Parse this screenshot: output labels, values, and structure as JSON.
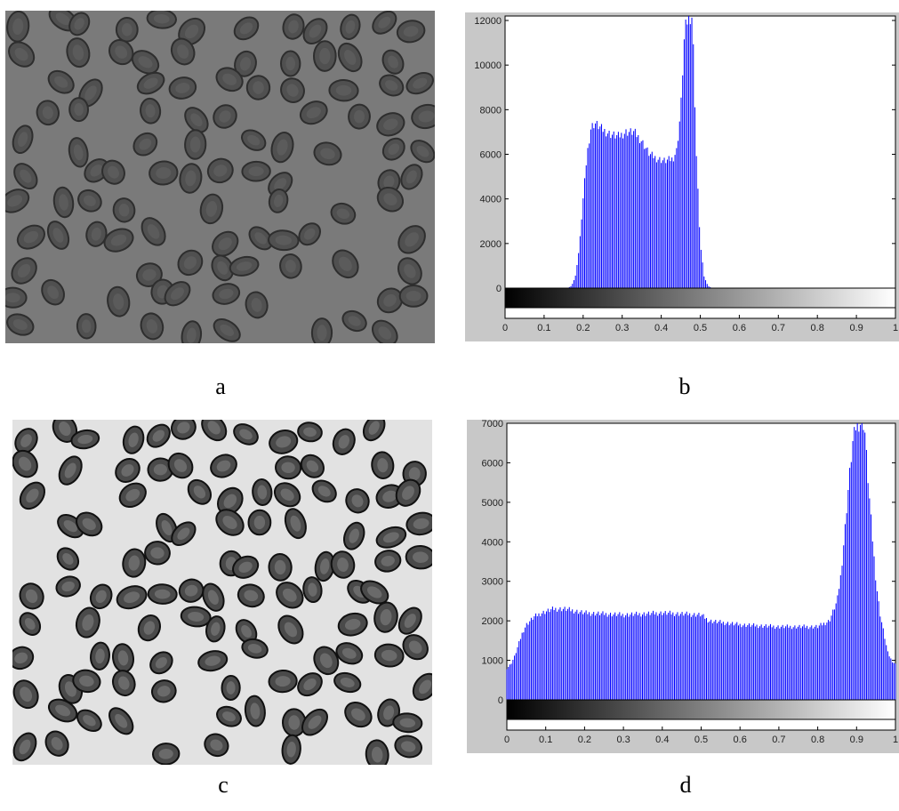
{
  "figure": {
    "captions": {
      "a": "a",
      "b": "b",
      "c": "c",
      "d": "d"
    },
    "image_a": {
      "description": "Grayscale micrograph of red blood cells (low contrast)",
      "background": "#7a7a7a",
      "cell_color": "#3e3e3e"
    },
    "image_c": {
      "description": "Contrast-enhanced micrograph of red blood cells",
      "background": "#e2e2e2",
      "cell_color": "#1e1e1e"
    }
  },
  "chart_data": [
    {
      "type": "bar",
      "id": "b",
      "title": "",
      "xlabel": "",
      "ylabel": "",
      "xlim": [
        0,
        1
      ],
      "ylim": [
        0,
        12200
      ],
      "y_ticks": [
        0,
        2000,
        4000,
        6000,
        8000,
        10000,
        12000
      ],
      "x_ticks": [
        0,
        0.1,
        0.2,
        0.3,
        0.4,
        0.5,
        0.6,
        0.7,
        0.8,
        0.9,
        1
      ],
      "x_tick_labels": [
        "0",
        "0.1",
        "0.2",
        "0.3",
        "0.4",
        "0.5",
        "0.6",
        "0.7",
        "0.8",
        "0.9",
        "1"
      ],
      "bar_color": "#0000ff",
      "colorbar": "grayscale",
      "profile": [
        [
          0.16,
          0
        ],
        [
          0.17,
          100
        ],
        [
          0.18,
          500
        ],
        [
          0.19,
          1800
        ],
        [
          0.2,
          4000
        ],
        [
          0.21,
          6000
        ],
        [
          0.22,
          7200
        ],
        [
          0.23,
          7400
        ],
        [
          0.25,
          7100
        ],
        [
          0.27,
          6900
        ],
        [
          0.29,
          6800
        ],
        [
          0.31,
          7000
        ],
        [
          0.33,
          7000
        ],
        [
          0.35,
          6600
        ],
        [
          0.37,
          6000
        ],
        [
          0.39,
          5800
        ],
        [
          0.41,
          5700
        ],
        [
          0.43,
          5800
        ],
        [
          0.44,
          6200
        ],
        [
          0.45,
          8000
        ],
        [
          0.46,
          11500
        ],
        [
          0.47,
          12200
        ],
        [
          0.48,
          12200
        ],
        [
          0.49,
          6000
        ],
        [
          0.5,
          2000
        ],
        [
          0.51,
          500
        ],
        [
          0.52,
          100
        ],
        [
          0.53,
          0
        ]
      ]
    },
    {
      "type": "bar",
      "id": "d",
      "title": "",
      "xlabel": "",
      "ylabel": "",
      "xlim": [
        0,
        1
      ],
      "ylim": [
        0,
        7000
      ],
      "y_ticks": [
        0,
        1000,
        2000,
        3000,
        4000,
        5000,
        6000,
        7000
      ],
      "x_ticks": [
        0,
        0.1,
        0.2,
        0.3,
        0.4,
        0.5,
        0.6,
        0.7,
        0.8,
        0.9,
        1
      ],
      "x_tick_labels": [
        "0",
        "0.1",
        "0.2",
        "0.3",
        "0.4",
        "0.5",
        "0.6",
        "0.7",
        "0.8",
        "0.9",
        "1"
      ],
      "bar_color": "#0000ff",
      "colorbar": "grayscale",
      "profile": [
        [
          0.0,
          800
        ],
        [
          0.01,
          900
        ],
        [
          0.02,
          1100
        ],
        [
          0.03,
          1400
        ],
        [
          0.04,
          1700
        ],
        [
          0.05,
          1900
        ],
        [
          0.07,
          2100
        ],
        [
          0.09,
          2200
        ],
        [
          0.12,
          2300
        ],
        [
          0.15,
          2300
        ],
        [
          0.2,
          2200
        ],
        [
          0.3,
          2150
        ],
        [
          0.4,
          2200
        ],
        [
          0.5,
          2150
        ],
        [
          0.52,
          2000
        ],
        [
          0.6,
          1900
        ],
        [
          0.7,
          1850
        ],
        [
          0.8,
          1850
        ],
        [
          0.83,
          2000
        ],
        [
          0.85,
          2500
        ],
        [
          0.86,
          3200
        ],
        [
          0.87,
          4300
        ],
        [
          0.88,
          5500
        ],
        [
          0.89,
          6500
        ],
        [
          0.9,
          7000
        ],
        [
          0.92,
          7000
        ],
        [
          0.93,
          5500
        ],
        [
          0.94,
          4200
        ],
        [
          0.95,
          3000
        ],
        [
          0.96,
          2200
        ],
        [
          0.97,
          1700
        ],
        [
          0.98,
          1200
        ],
        [
          0.99,
          1000
        ],
        [
          1.0,
          900
        ]
      ]
    }
  ]
}
